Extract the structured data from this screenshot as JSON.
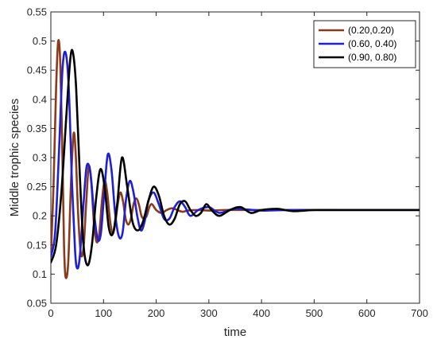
{
  "chart_data": {
    "type": "line",
    "xlabel": "time",
    "ylabel": "Middle trophic species",
    "xlim": [
      0,
      700
    ],
    "ylim": [
      0.05,
      0.55
    ],
    "xticks": [
      0,
      100,
      200,
      300,
      400,
      500,
      600,
      700
    ],
    "yticks": [
      0.05,
      0.1,
      0.15,
      0.2,
      0.25,
      0.3,
      0.35,
      0.4,
      0.45,
      0.5,
      0.55
    ],
    "xtick_labels": [
      "0",
      "100",
      "200",
      "300",
      "400",
      "500",
      "600",
      "700"
    ],
    "ytick_labels": [
      "0.05",
      "0.1",
      "0.15",
      "0.2",
      "0.25",
      "0.3",
      "0.35",
      "0.4",
      "0.45",
      "0.5",
      "0.55"
    ],
    "grid": false,
    "legend_position": "top-right",
    "series": [
      {
        "name": "(0.20,0.20)",
        "color": "#8B3A1A",
        "x": [
          0,
          5,
          10,
          14,
          18,
          22,
          25,
          28,
          33,
          38,
          43,
          47,
          52,
          57,
          62,
          67,
          72,
          77,
          82,
          87,
          92,
          97,
          102,
          107,
          112,
          117,
          122,
          127,
          132,
          137,
          142,
          147,
          152,
          157,
          162,
          167,
          172,
          177,
          182,
          187,
          192,
          200,
          210,
          220,
          230,
          240,
          250,
          260,
          280,
          300,
          330,
          360,
          400,
          450,
          500,
          550,
          600,
          650,
          700
        ],
        "y": [
          0.13,
          0.25,
          0.42,
          0.5,
          0.46,
          0.3,
          0.15,
          0.095,
          0.12,
          0.25,
          0.34,
          0.31,
          0.2,
          0.135,
          0.145,
          0.22,
          0.285,
          0.255,
          0.185,
          0.155,
          0.17,
          0.225,
          0.26,
          0.24,
          0.195,
          0.17,
          0.185,
          0.22,
          0.24,
          0.225,
          0.195,
          0.185,
          0.195,
          0.22,
          0.23,
          0.22,
          0.2,
          0.195,
          0.2,
          0.215,
          0.22,
          0.21,
          0.205,
          0.21,
          0.213,
          0.21,
          0.207,
          0.209,
          0.21,
          0.209,
          0.21,
          0.21,
          0.21,
          0.21,
          0.21,
          0.21,
          0.21,
          0.21,
          0.21
        ]
      },
      {
        "name": "(0.60, 0.40)",
        "color": "#1F1FD6",
        "x": [
          0,
          8,
          15,
          22,
          28,
          34,
          40,
          46,
          50,
          55,
          62,
          68,
          75,
          82,
          89,
          95,
          101,
          108,
          115,
          122,
          129,
          136,
          143,
          150,
          157,
          164,
          171,
          178,
          185,
          195,
          205,
          215,
          225,
          235,
          245,
          255,
          265,
          280,
          300,
          320,
          350,
          400,
          450,
          500,
          550,
          600,
          650,
          700
        ],
        "y": [
          0.13,
          0.17,
          0.3,
          0.45,
          0.48,
          0.42,
          0.26,
          0.14,
          0.11,
          0.13,
          0.22,
          0.285,
          0.275,
          0.205,
          0.16,
          0.17,
          0.235,
          0.305,
          0.28,
          0.205,
          0.165,
          0.17,
          0.23,
          0.26,
          0.24,
          0.2,
          0.175,
          0.19,
          0.225,
          0.24,
          0.22,
          0.195,
          0.195,
          0.215,
          0.225,
          0.215,
          0.2,
          0.21,
          0.215,
          0.205,
          0.212,
          0.209,
          0.21,
          0.21,
          0.21,
          0.21,
          0.21,
          0.21
        ]
      },
      {
        "name": "(0.90, 0.80)",
        "color": "#000000",
        "x": [
          0,
          10,
          20,
          30,
          37,
          42,
          48,
          55,
          62,
          70,
          78,
          86,
          94,
          102,
          110,
          118,
          126,
          135,
          145,
          155,
          165,
          175,
          185,
          195,
          205,
          215,
          225,
          235,
          245,
          255,
          265,
          275,
          285,
          295,
          305,
          320,
          340,
          360,
          380,
          400,
          430,
          460,
          500,
          550,
          600,
          650,
          700
        ],
        "y": [
          0.12,
          0.15,
          0.24,
          0.38,
          0.47,
          0.48,
          0.42,
          0.27,
          0.15,
          0.115,
          0.15,
          0.23,
          0.28,
          0.25,
          0.18,
          0.17,
          0.22,
          0.3,
          0.25,
          0.19,
          0.175,
          0.19,
          0.225,
          0.25,
          0.235,
          0.2,
          0.185,
          0.195,
          0.22,
          0.225,
          0.21,
          0.2,
          0.205,
          0.22,
          0.21,
          0.2,
          0.21,
          0.215,
          0.205,
          0.21,
          0.212,
          0.208,
          0.21,
          0.21,
          0.21,
          0.21,
          0.21
        ]
      }
    ]
  }
}
